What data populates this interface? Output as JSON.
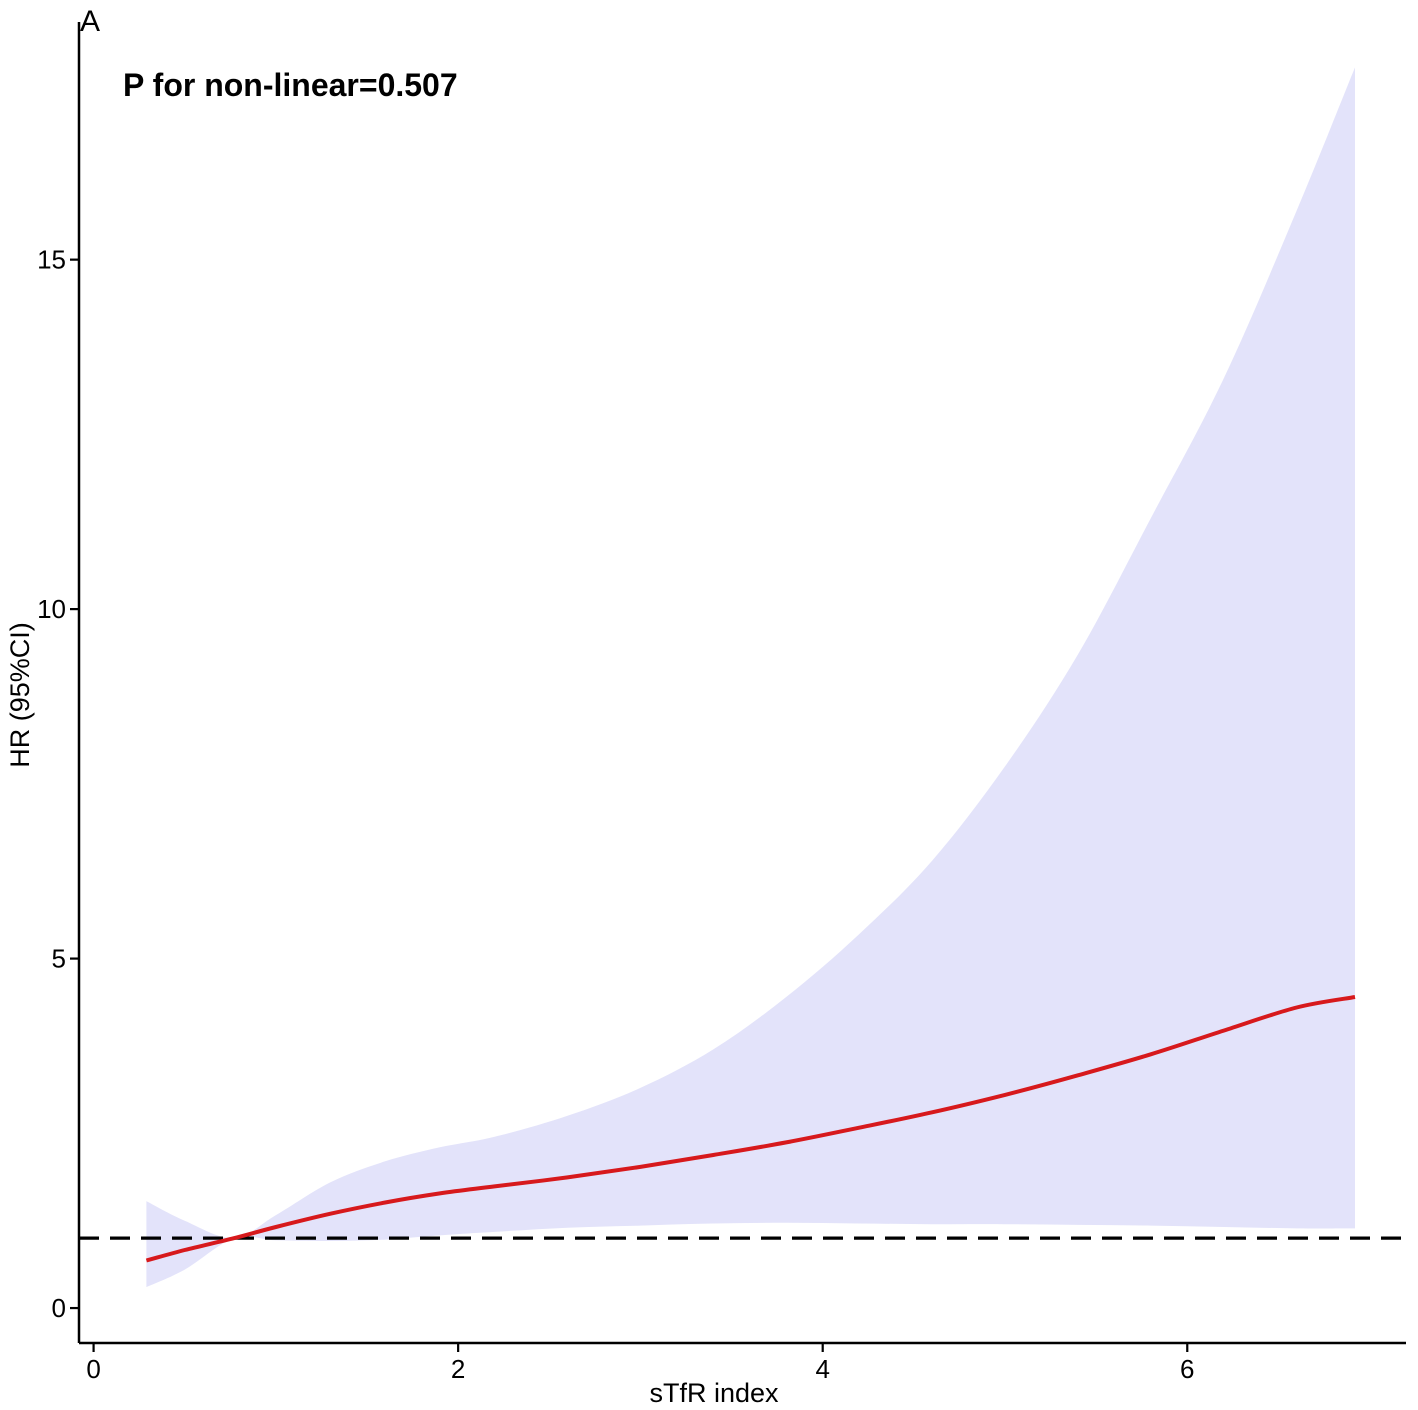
{
  "chart_data": {
    "type": "area",
    "panel_label": "A",
    "annotation": "P for non-linear=0.507",
    "xlabel": "sTfR index",
    "ylabel": "HR (95%CI)",
    "xlim": [
      -0.08,
      7.2
    ],
    "ylim": [
      -0.5,
      18.4
    ],
    "x_ticks": [
      0,
      2,
      4,
      6
    ],
    "x_tick_labels": [
      "0",
      "2",
      "4",
      "6"
    ],
    "y_ticks": [
      0,
      5,
      10,
      15
    ],
    "y_tick_labels": [
      "0",
      "5",
      "10",
      "15"
    ],
    "reference_line": {
      "y": 1.0,
      "style": "dashed",
      "color": "#000000"
    },
    "grid": false,
    "legend": "none",
    "colors": {
      "line": "#d7191c",
      "ci_fill": "#e3e3fa"
    },
    "series": [
      {
        "kind": "line",
        "x": [
          0.29,
          0.5,
          0.77,
          1.0,
          1.3,
          1.6,
          1.9,
          2.2,
          2.6,
          3.0,
          3.4,
          3.8,
          4.2,
          4.6,
          5.0,
          5.4,
          5.8,
          6.2,
          6.6,
          6.92
        ],
        "y": [
          0.68,
          0.83,
          1.0,
          1.16,
          1.35,
          1.51,
          1.64,
          1.74,
          1.87,
          2.02,
          2.19,
          2.37,
          2.58,
          2.8,
          3.05,
          3.33,
          3.63,
          3.97,
          4.3,
          4.45
        ]
      },
      {
        "kind": "band",
        "x": [
          0.29,
          0.5,
          0.77,
          1.0,
          1.3,
          1.6,
          1.9,
          2.2,
          2.6,
          3.0,
          3.4,
          3.8,
          4.2,
          4.6,
          5.0,
          5.4,
          5.8,
          6.2,
          6.6,
          6.92
        ],
        "upper": [
          1.53,
          1.25,
          1.0,
          1.33,
          1.8,
          2.1,
          2.3,
          2.45,
          2.75,
          3.15,
          3.7,
          4.45,
          5.35,
          6.4,
          7.75,
          9.35,
          11.3,
          13.3,
          15.7,
          17.75
        ],
        "lower": [
          0.3,
          0.55,
          1.0,
          0.97,
          0.96,
          0.98,
          1.04,
          1.09,
          1.15,
          1.18,
          1.21,
          1.22,
          1.21,
          1.2,
          1.2,
          1.19,
          1.18,
          1.16,
          1.14,
          1.14
        ]
      }
    ]
  }
}
